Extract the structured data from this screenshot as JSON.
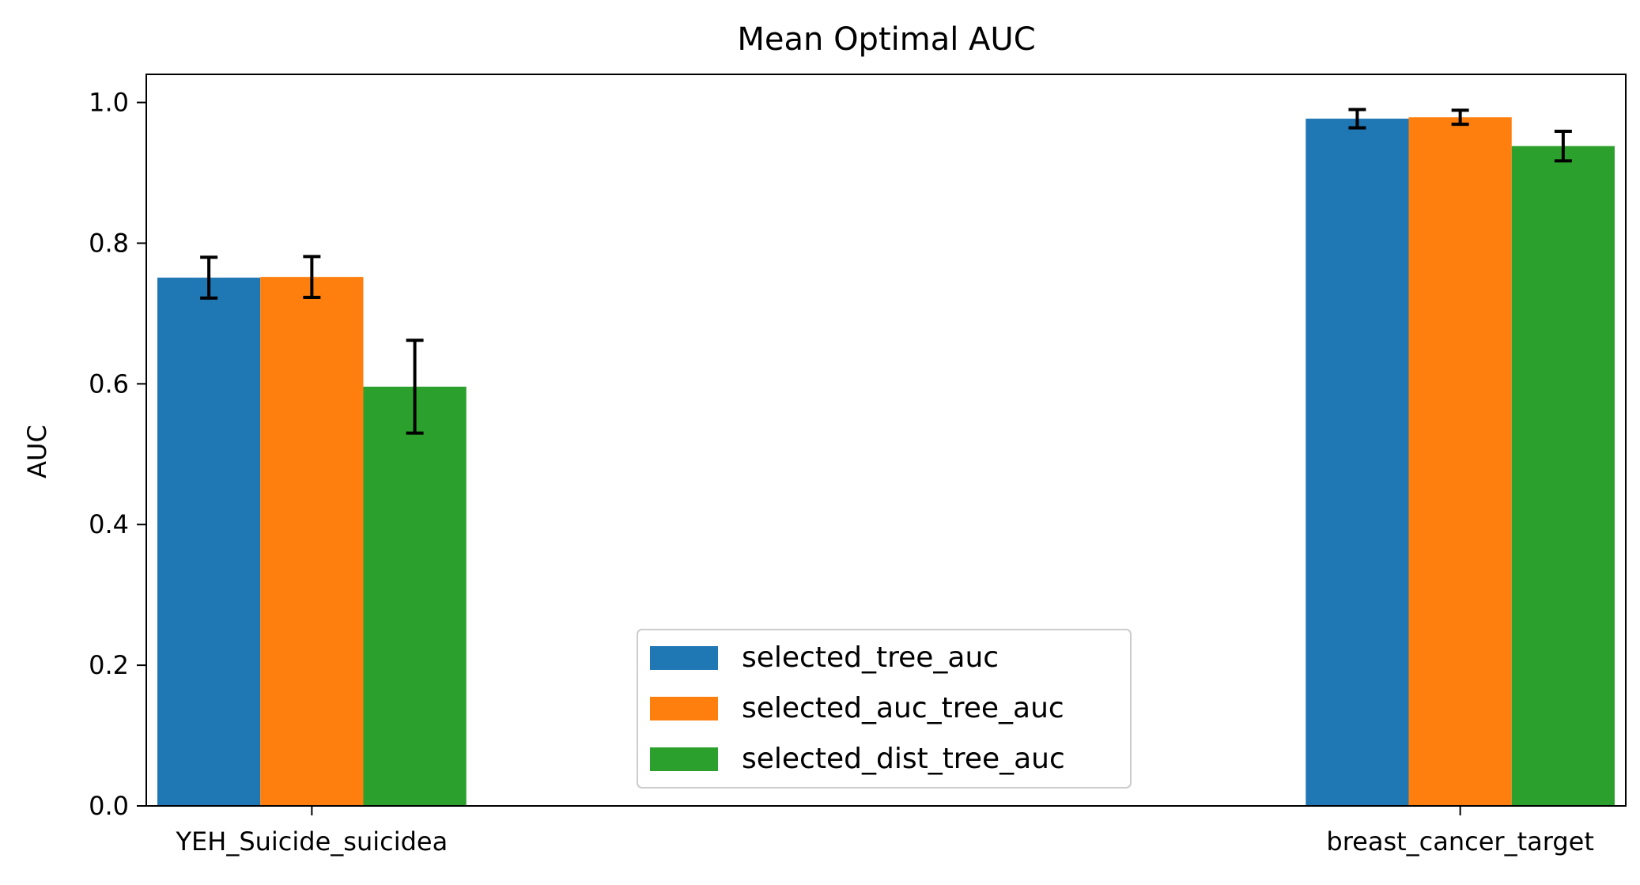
{
  "chart_data": {
    "type": "bar",
    "title": "Mean Optimal AUC",
    "xlabel": "",
    "ylabel": "AUC",
    "categories": [
      "YEH_Suicide_suicidea",
      "breast_cancer_target"
    ],
    "series": [
      {
        "name": "selected_tree_auc",
        "color": "#1f77b4",
        "values": [
          0.751,
          0.977
        ],
        "errors": [
          0.029,
          0.013
        ]
      },
      {
        "name": "selected_auc_tree_auc",
        "color": "#ff7f0e",
        "values": [
          0.752,
          0.979
        ],
        "errors": [
          0.029,
          0.01
        ]
      },
      {
        "name": "selected_dist_tree_auc",
        "color": "#2ca02c",
        "values": [
          0.596,
          0.938
        ],
        "errors": [
          0.066,
          0.021
        ]
      }
    ],
    "ylim": [
      0,
      1.04
    ],
    "yticks": [
      "0.0",
      "0.2",
      "0.4",
      "0.6",
      "0.8",
      "1.0"
    ],
    "grid": false,
    "legend_position": "lower-center"
  }
}
